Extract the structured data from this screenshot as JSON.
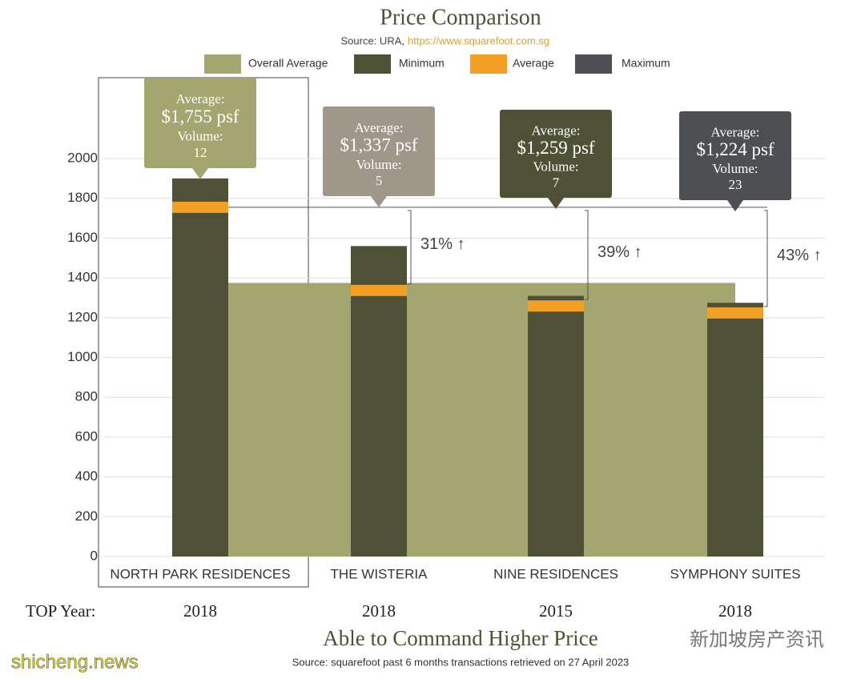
{
  "chart_data": {
    "type": "bar",
    "title": "Price Comparison",
    "source_prefix": "Source: URA,",
    "source_link": "https://www.squarefoot.com.sg",
    "legend": [
      {
        "name": "Overall Average",
        "color": "#a3a66f"
      },
      {
        "name": "Minimum",
        "color": "#4f5136"
      },
      {
        "name": "Average",
        "color": "#f4a024"
      },
      {
        "name": "Maximum",
        "color": "#4d4f52"
      }
    ],
    "categories": [
      "NORTH PARK RESIDENCES",
      "THE WISTERIA",
      "NINE RESIDENCES",
      "SYMPHONY SUITES"
    ],
    "overall_average": {
      "value": 1375,
      "color": "#a3a66f"
    },
    "maximum": {
      "color": "#4f5136",
      "values": [
        1900,
        1560,
        1310,
        1275
      ]
    },
    "average": {
      "color": "#f4a024",
      "values": [
        1755,
        1337,
        1259,
        1224
      ],
      "value_labels": [
        "$1,755 psf",
        "$1,337 psf",
        "$1,259 psf",
        "$1,224 psf"
      ]
    },
    "average_caption": "Average:",
    "volume_caption": "Volume:",
    "volumes": [
      12,
      5,
      7,
      23
    ],
    "callout_colors": [
      "#a3a66f",
      "#a0968a",
      "#4f5136",
      "#4d4f52"
    ],
    "increase": {
      "values": [
        null,
        31,
        39,
        43
      ],
      "value_labels": [
        null,
        "31% ↑",
        "39% ↑",
        "43% ↑"
      ]
    },
    "ylim": [
      0,
      2000
    ],
    "yticks": [
      0,
      200,
      400,
      600,
      800,
      1000,
      1200,
      1400,
      1600,
      1800,
      2000
    ],
    "grid": true,
    "top_year_label": "TOP Year:",
    "top_years": [
      2018,
      2018,
      2015,
      2018
    ],
    "subtitle": "Able to Command Higher Price",
    "footer_source": "Source: squarefoot past 6 months transactions retrieved on 27 April 2023",
    "watermark": "新加坡房产资讯",
    "site": "shicheng.news"
  }
}
